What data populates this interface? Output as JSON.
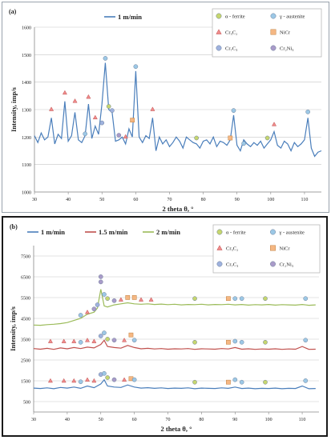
{
  "chart_data": [
    {
      "type": "line",
      "panel_label": "(a)",
      "xlabel": "2 theta θ, °",
      "ylabel": "Intensity, imp/s",
      "xlim": [
        30,
        115
      ],
      "ylim": [
        1000,
        1600
      ],
      "xticks": [
        "30",
        "40",
        "50",
        "60",
        "70",
        "80",
        "90",
        "100",
        "110"
      ],
      "yticks": [
        "1000",
        "1100",
        "1200",
        "1300",
        "1400",
        "1500",
        "1600"
      ],
      "grid": "horizontal",
      "legend_position": "top-left",
      "series": [
        {
          "name": "1 m/min",
          "color": "#4a7ebb",
          "x": [
            30,
            31,
            32,
            33,
            34,
            35,
            36,
            37,
            38,
            39,
            40,
            41,
            42,
            43,
            44,
            45,
            46,
            47,
            48,
            49,
            50,
            51,
            52,
            53,
            54,
            55,
            56,
            57,
            58,
            59,
            60,
            61,
            62,
            63,
            64,
            65,
            66,
            67,
            68,
            69,
            70,
            71,
            72,
            73,
            74,
            75,
            76,
            77,
            78,
            79,
            80,
            81,
            82,
            83,
            84,
            85,
            86,
            87,
            88,
            89,
            90,
            91,
            92,
            93,
            94,
            95,
            96,
            97,
            98,
            99,
            100,
            101,
            102,
            103,
            104,
            105,
            106,
            107,
            108,
            109,
            110,
            111,
            112,
            113,
            114,
            115
          ],
          "y": [
            1205,
            1180,
            1215,
            1190,
            1200,
            1270,
            1175,
            1210,
            1195,
            1330,
            1185,
            1205,
            1290,
            1190,
            1180,
            1205,
            1320,
            1195,
            1240,
            1210,
            1320,
            1470,
            1300,
            1290,
            1185,
            1190,
            1200,
            1175,
            1230,
            1200,
            1440,
            1200,
            1180,
            1205,
            1195,
            1270,
            1150,
            1200,
            1175,
            1190,
            1165,
            1180,
            1200,
            1185,
            1160,
            1200,
            1190,
            1180,
            1175,
            1160,
            1185,
            1190,
            1175,
            1200,
            1165,
            1185,
            1180,
            1170,
            1190,
            1280,
            1170,
            1150,
            1190,
            1175,
            1165,
            1180,
            1170,
            1185,
            1160,
            1175,
            1190,
            1220,
            1170,
            1160,
            1185,
            1175,
            1150,
            1180,
            1165,
            1175,
            1190,
            1270,
            1160,
            1130,
            1145,
            1150
          ]
        }
      ],
      "legend_phases": [
        {
          "label": "α - ferrite",
          "marker": "circle",
          "color": "#c6d66e"
        },
        {
          "label": "γ - austenite",
          "marker": "circle",
          "color": "#9cc8e6"
        },
        {
          "label": "Cr₃C₂",
          "marker": "triangle",
          "color": "#f08c8c"
        },
        {
          "label": "NiCr",
          "marker": "square",
          "color": "#f5b783"
        },
        {
          "label": "Cr₇C₃",
          "marker": "circle",
          "color": "#9fb2de"
        },
        {
          "label": "Cr₂Ni₃",
          "marker": "circle",
          "color": "#a99bc9"
        }
      ],
      "phase_markers": [
        {
          "x": 35,
          "y": 1290,
          "phase": "Cr₃C₂"
        },
        {
          "x": 39,
          "y": 1350,
          "phase": "Cr₃C₂"
        },
        {
          "x": 42,
          "y": 1320,
          "phase": "Cr₃C₂"
        },
        {
          "x": 45,
          "y": 1200,
          "phase": "γ - austenite"
        },
        {
          "x": 46,
          "y": 1335,
          "phase": "Cr₃C₂"
        },
        {
          "x": 48,
          "y": 1260,
          "phase": "Cr₃C₂"
        },
        {
          "x": 50,
          "y": 1240,
          "phase": "Cr₇C₃"
        },
        {
          "x": 51,
          "y": 1475,
          "phase": "γ - austenite"
        },
        {
          "x": 52,
          "y": 1300,
          "phase": "α - ferrite"
        },
        {
          "x": 53,
          "y": 1285,
          "phase": "Cr₇C₃"
        },
        {
          "x": 55,
          "y": 1195,
          "phase": "Cr₂Ni₃"
        },
        {
          "x": 57,
          "y": 1190,
          "phase": "Cr₃C₂"
        },
        {
          "x": 59,
          "y": 1250,
          "phase": "NiCr"
        },
        {
          "x": 60,
          "y": 1445,
          "phase": "γ - austenite"
        },
        {
          "x": 65,
          "y": 1290,
          "phase": "Cr₃C₂"
        },
        {
          "x": 78,
          "y": 1185,
          "phase": "α - ferrite"
        },
        {
          "x": 88,
          "y": 1185,
          "phase": "NiCr"
        },
        {
          "x": 89,
          "y": 1285,
          "phase": "γ - austenite"
        },
        {
          "x": 92,
          "y": 1165,
          "phase": "γ - austenite"
        },
        {
          "x": 99,
          "y": 1185,
          "phase": "α - ferrite"
        },
        {
          "x": 101,
          "y": 1235,
          "phase": "Cr₃C₂"
        },
        {
          "x": 111,
          "y": 1280,
          "phase": "γ - austenite"
        }
      ]
    },
    {
      "type": "line",
      "panel_label": "(b)",
      "xlabel": "2 theta θ, °",
      "ylabel": "Intensity, imp/s",
      "xlim": [
        30,
        115
      ],
      "ylim": [
        0,
        8000
      ],
      "xticks": [
        "30",
        "40",
        "50",
        "60",
        "70",
        "80",
        "90",
        "100",
        "110"
      ],
      "yticks": [
        "500",
        "1500",
        "2500",
        "3500",
        "4500",
        "5500",
        "6500",
        "7500"
      ],
      "ytick_values": [
        500,
        1500,
        2500,
        3500,
        4500,
        5500,
        6500,
        7500
      ],
      "grid": "horizontal",
      "legend_position": "top-left",
      "series": [
        {
          "name": "1 m/min",
          "color": "#4a7ebb",
          "x": [
            30,
            32,
            34,
            36,
            38,
            40,
            42,
            44,
            46,
            48,
            50,
            51,
            52,
            54,
            56,
            58,
            60,
            62,
            64,
            66,
            68,
            70,
            72,
            74,
            76,
            78,
            80,
            82,
            84,
            86,
            88,
            90,
            92,
            94,
            96,
            98,
            100,
            102,
            104,
            106,
            108,
            110,
            112,
            114
          ],
          "y": [
            1150,
            1130,
            1160,
            1120,
            1180,
            1150,
            1200,
            1140,
            1250,
            1170,
            1350,
            1550,
            1250,
            1200,
            1180,
            1300,
            1200,
            1150,
            1170,
            1140,
            1160,
            1130,
            1150,
            1140,
            1160,
            1120,
            1150,
            1140,
            1130,
            1160,
            1140,
            1200,
            1130,
            1150,
            1120,
            1140,
            1130,
            1150,
            1120,
            1140,
            1130,
            1250,
            1120,
            1130
          ]
        },
        {
          "name": "1.5 m/min",
          "color": "#c0504d",
          "x": [
            30,
            32,
            34,
            36,
            38,
            40,
            42,
            44,
            46,
            48,
            50,
            51,
            52,
            54,
            56,
            58,
            60,
            62,
            64,
            66,
            68,
            70,
            72,
            74,
            76,
            78,
            80,
            82,
            84,
            86,
            88,
            90,
            92,
            94,
            96,
            98,
            100,
            102,
            104,
            106,
            108,
            110,
            112,
            114
          ],
          "y": [
            3050,
            3020,
            3060,
            3010,
            3080,
            3040,
            3100,
            3050,
            3120,
            3080,
            3250,
            3450,
            3150,
            3100,
            3070,
            3200,
            3100,
            3040,
            3060,
            3030,
            3050,
            3020,
            3040,
            3030,
            3050,
            3010,
            3040,
            3030,
            3020,
            3050,
            3030,
            3100,
            3020,
            3040,
            3010,
            3030,
            3020,
            3040,
            3010,
            3030,
            3020,
            3150,
            3010,
            3020
          ]
        },
        {
          "name": "2 m/min",
          "color": "#9bbb59",
          "x": [
            30,
            32,
            34,
            36,
            38,
            40,
            42,
            44,
            46,
            48,
            49,
            50,
            51,
            52,
            54,
            56,
            58,
            60,
            62,
            64,
            66,
            68,
            70,
            72,
            74,
            76,
            78,
            80,
            82,
            84,
            86,
            88,
            90,
            92,
            94,
            96,
            98,
            100,
            102,
            104,
            106,
            108,
            110,
            112,
            114
          ],
          "y": [
            4180,
            4170,
            4200,
            4220,
            4250,
            4300,
            4400,
            4500,
            4700,
            4800,
            5000,
            5900,
            5100,
            5050,
            5150,
            5200,
            5250,
            5200,
            5180,
            5200,
            5170,
            5190,
            5160,
            5180,
            5150,
            5170,
            5160,
            5180,
            5150,
            5170,
            5160,
            5180,
            5150,
            5170,
            5140,
            5160,
            5150,
            5170,
            5140,
            5160,
            5150,
            5140,
            5170,
            5130,
            5150
          ]
        }
      ],
      "legend_phases": [
        {
          "label": "α - ferrite",
          "marker": "circle",
          "color": "#c6d66e"
        },
        {
          "label": "γ - austenite",
          "marker": "circle",
          "color": "#9cc8e6"
        },
        {
          "label": "Cr₃C₂",
          "marker": "triangle",
          "color": "#f08c8c"
        },
        {
          "label": "NiCr",
          "marker": "square",
          "color": "#f5b783"
        },
        {
          "label": "Cr₇C₃",
          "marker": "circle",
          "color": "#9fb2de"
        },
        {
          "label": "Cr₂Ni₃",
          "marker": "circle",
          "color": "#a99bc9"
        }
      ],
      "phase_markers": [
        {
          "x": 35,
          "y": 1350,
          "phase": "Cr₃C₂"
        },
        {
          "x": 39,
          "y": 1350,
          "phase": "Cr₃C₂"
        },
        {
          "x": 42,
          "y": 1350,
          "phase": "Cr₃C₂"
        },
        {
          "x": 44,
          "y": 1300,
          "phase": "γ - austenite"
        },
        {
          "x": 46,
          "y": 1400,
          "phase": "Cr₃C₂"
        },
        {
          "x": 48,
          "y": 1350,
          "phase": "Cr₃C₂"
        },
        {
          "x": 50,
          "y": 1650,
          "phase": "Cr₇C₃"
        },
        {
          "x": 51,
          "y": 1700,
          "phase": "γ - austenite"
        },
        {
          "x": 52,
          "y": 1500,
          "phase": "α - ferrite"
        },
        {
          "x": 54,
          "y": 1400,
          "phase": "Cr₂Ni₃"
        },
        {
          "x": 57,
          "y": 1400,
          "phase": "Cr₃C₂"
        },
        {
          "x": 59,
          "y": 1450,
          "phase": "NiCr"
        },
        {
          "x": 60,
          "y": 1400,
          "phase": "γ - austenite"
        },
        {
          "x": 78,
          "y": 1280,
          "phase": "α - ferrite"
        },
        {
          "x": 88,
          "y": 1280,
          "phase": "NiCr"
        },
        {
          "x": 90,
          "y": 1400,
          "phase": "γ - austenite"
        },
        {
          "x": 92,
          "y": 1280,
          "phase": "γ - austenite"
        },
        {
          "x": 99,
          "y": 1280,
          "phase": "α - ferrite"
        },
        {
          "x": 111,
          "y": 1350,
          "phase": "γ - austenite"
        },
        {
          "x": 35,
          "y": 3250,
          "phase": "Cr₃C₂"
        },
        {
          "x": 39,
          "y": 3250,
          "phase": "Cr₃C₂"
        },
        {
          "x": 42,
          "y": 3250,
          "phase": "Cr₃C₂"
        },
        {
          "x": 44,
          "y": 3200,
          "phase": "γ - austenite"
        },
        {
          "x": 46,
          "y": 3300,
          "phase": "Cr₃C₂"
        },
        {
          "x": 48,
          "y": 3250,
          "phase": "Cr₃C₂"
        },
        {
          "x": 50,
          "y": 3500,
          "phase": "Cr₇C₃"
        },
        {
          "x": 51,
          "y": 3650,
          "phase": "γ - austenite"
        },
        {
          "x": 52,
          "y": 3350,
          "phase": "α - ferrite"
        },
        {
          "x": 54,
          "y": 3300,
          "phase": "Cr₂Ni₃"
        },
        {
          "x": 57,
          "y": 3300,
          "phase": "Cr₃C₂"
        },
        {
          "x": 59,
          "y": 3550,
          "phase": "NiCr"
        },
        {
          "x": 60,
          "y": 3300,
          "phase": "γ - austenite"
        },
        {
          "x": 78,
          "y": 3200,
          "phase": "α - ferrite"
        },
        {
          "x": 88,
          "y": 3200,
          "phase": "NiCr"
        },
        {
          "x": 90,
          "y": 3250,
          "phase": "γ - austenite"
        },
        {
          "x": 92,
          "y": 3200,
          "phase": "γ - austenite"
        },
        {
          "x": 99,
          "y": 3200,
          "phase": "α - ferrite"
        },
        {
          "x": 111,
          "y": 3300,
          "phase": "γ - austenite"
        },
        {
          "x": 44,
          "y": 4500,
          "phase": "γ - austenite"
        },
        {
          "x": 46,
          "y": 4650,
          "phase": "Cr₃C₂"
        },
        {
          "x": 48,
          "y": 4800,
          "phase": "Cr₂Ni₃"
        },
        {
          "x": 49,
          "y": 5000,
          "phase": "Cr₇C₃"
        },
        {
          "x": 50,
          "y": 6350,
          "phase": "Cr₂Ni₃"
        },
        {
          "x": 50,
          "y": 6100,
          "phase": "Cr₂Ni₃"
        },
        {
          "x": 51,
          "y": 5500,
          "phase": "γ - austenite"
        },
        {
          "x": 52,
          "y": 5300,
          "phase": "α - ferrite"
        },
        {
          "x": 54,
          "y": 5200,
          "phase": "Cr₂Ni₃"
        },
        {
          "x": 56,
          "y": 5250,
          "phase": "Cr₃C₂"
        },
        {
          "x": 58,
          "y": 5350,
          "phase": "NiCr"
        },
        {
          "x": 60,
          "y": 5350,
          "phase": "NiCr"
        },
        {
          "x": 62,
          "y": 5250,
          "phase": "Cr₃C₂"
        },
        {
          "x": 65,
          "y": 5250,
          "phase": "Cr₃C₂"
        },
        {
          "x": 78,
          "y": 5300,
          "phase": "α - ferrite"
        },
        {
          "x": 88,
          "y": 5300,
          "phase": "NiCr"
        },
        {
          "x": 90,
          "y": 5300,
          "phase": "γ - austenite"
        },
        {
          "x": 92,
          "y": 5300,
          "phase": "γ - austenite"
        },
        {
          "x": 99,
          "y": 5300,
          "phase": "α - ferrite"
        },
        {
          "x": 111,
          "y": 5300,
          "phase": "γ - austenite"
        }
      ]
    }
  ]
}
